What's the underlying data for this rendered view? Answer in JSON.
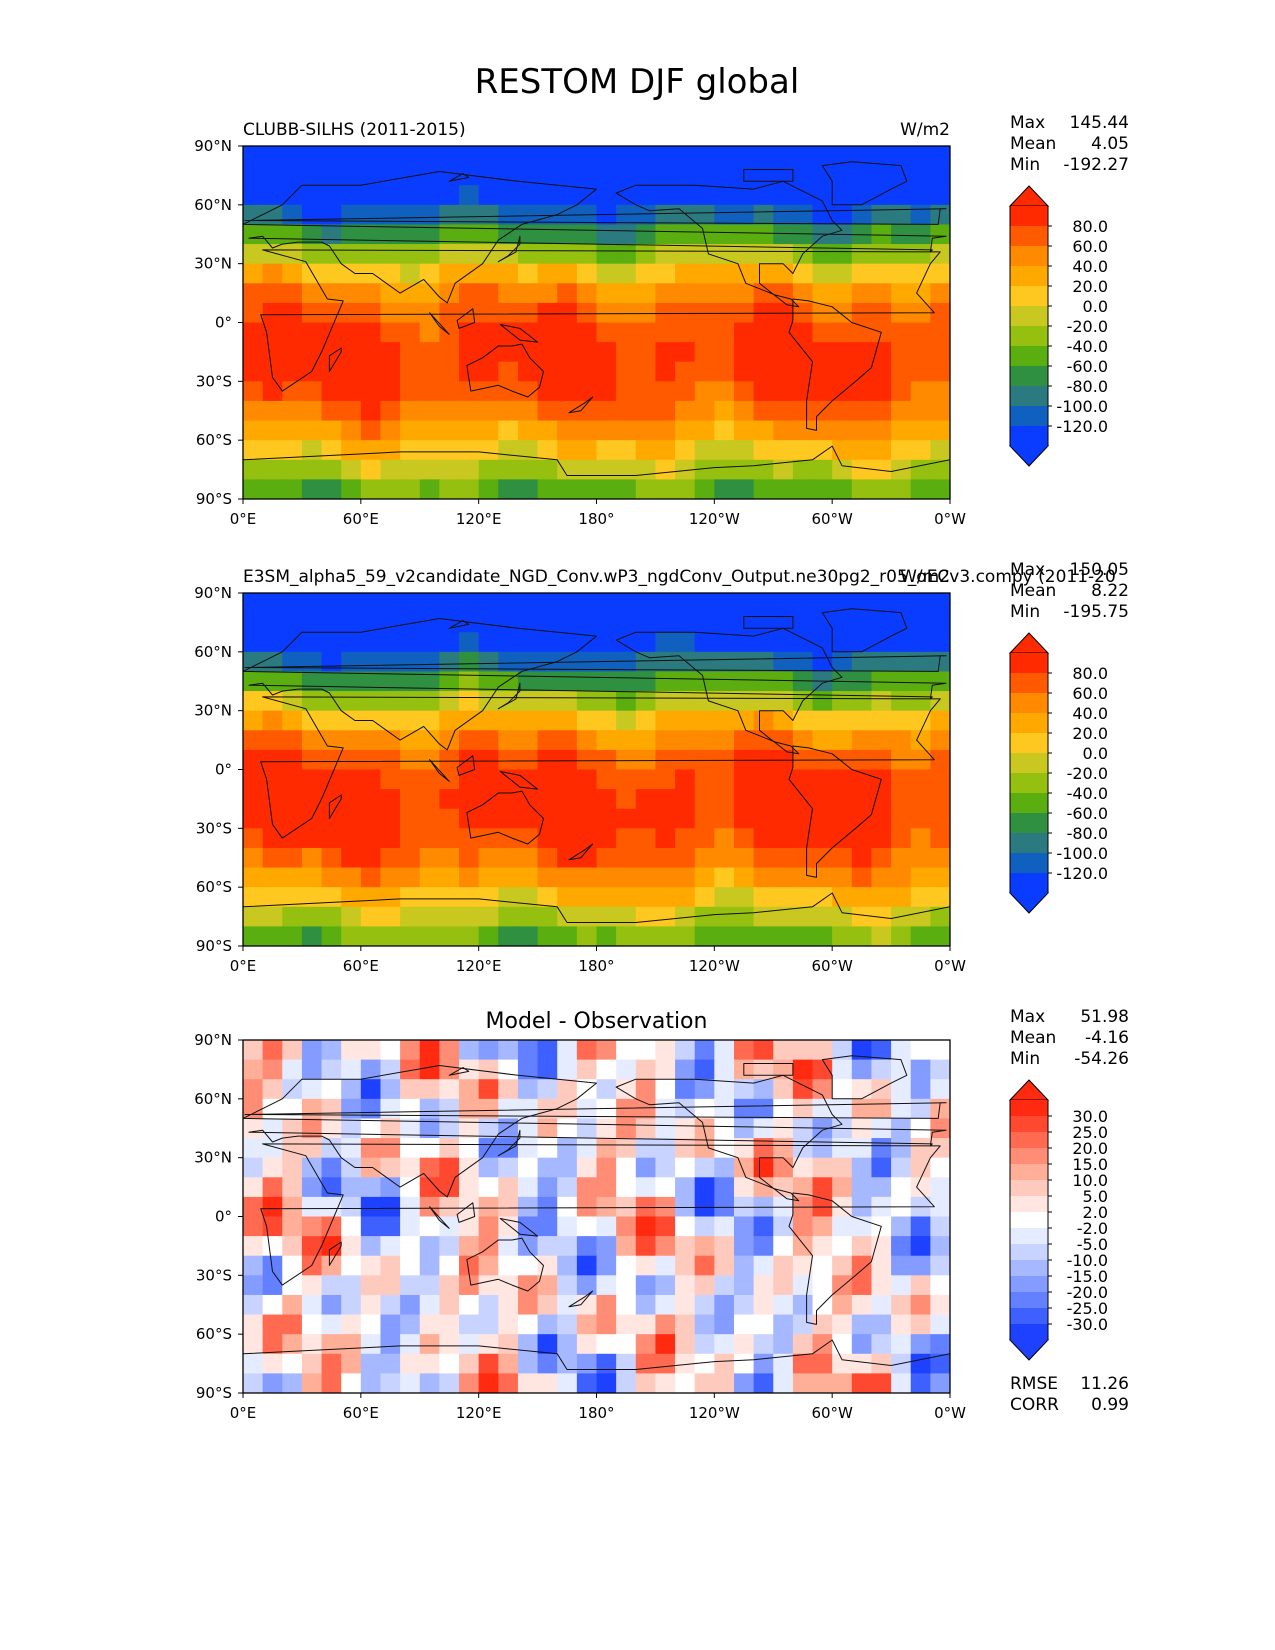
{
  "figure": {
    "title": "RESTOM DJF global"
  },
  "axes": {
    "lat_ticks": [
      "90°N",
      "60°N",
      "30°N",
      "0°",
      "30°S",
      "60°S",
      "90°S"
    ],
    "lon_ticks": [
      "0°E",
      "60°E",
      "120°E",
      "180°",
      "120°W",
      "60°W",
      "0°W"
    ]
  },
  "chart_data": [
    {
      "type": "heatmap",
      "name": "test",
      "left_title": "CLUBB-SILHS (2011-2015)",
      "center_title": "",
      "units": "W/m2",
      "stats": {
        "labels": [
          "Max",
          "Mean",
          "Min"
        ],
        "values": [
          "145.44",
          "4.05",
          "-192.27"
        ]
      },
      "colorbar": {
        "ticks": [
          "80.0",
          "60.0",
          "40.0",
          "20.0",
          "0.0",
          "-20.0",
          "-40.0",
          "-60.0",
          "-80.0",
          "-100.0",
          "-120.0"
        ],
        "colors": [
          "#ff2a00",
          "#ff5a00",
          "#ff8a00",
          "#ffa800",
          "#ffc820",
          "#c8c820",
          "#96c010",
          "#5aae10",
          "#2e9040",
          "#2b7a80",
          "#1060c0",
          "#0a3cff"
        ]
      },
      "x_range": [
        0,
        360
      ],
      "y_range": [
        -90,
        90
      ]
    },
    {
      "type": "heatmap",
      "name": "reference",
      "left_title": "E3SM_alpha5_59_v2candidate_NGD_Conv.wP3_ngdConv_Output.ne30pg2_r05_oECv3.compy (2011-20",
      "center_title": "",
      "units": "W/m2",
      "stats": {
        "labels": [
          "Max",
          "Mean",
          "Min"
        ],
        "values": [
          "150.05",
          "8.22",
          "-195.75"
        ]
      },
      "colorbar": {
        "ticks": [
          "80.0",
          "60.0",
          "40.0",
          "20.0",
          "0.0",
          "-20.0",
          "-40.0",
          "-60.0",
          "-80.0",
          "-100.0",
          "-120.0"
        ],
        "colors": [
          "#ff2a00",
          "#ff5a00",
          "#ff8a00",
          "#ffa800",
          "#ffc820",
          "#c8c820",
          "#96c010",
          "#5aae10",
          "#2e9040",
          "#2b7a80",
          "#1060c0",
          "#0a3cff"
        ]
      },
      "x_range": [
        0,
        360
      ],
      "y_range": [
        -90,
        90
      ]
    },
    {
      "type": "heatmap",
      "name": "difference",
      "left_title": "",
      "center_title": "Model - Observation",
      "units": "",
      "stats": {
        "labels": [
          "Max",
          "Mean",
          "Min"
        ],
        "values": [
          "51.98",
          "-4.16",
          "-54.26"
        ]
      },
      "metrics": {
        "labels": [
          "RMSE",
          "CORR"
        ],
        "values": [
          "11.26",
          "0.99"
        ]
      },
      "colorbar": {
        "ticks": [
          "30.0",
          "25.0",
          "20.0",
          "15.0",
          "10.0",
          "5.0",
          "2.0",
          "-2.0",
          "-5.0",
          "-10.0",
          "-15.0",
          "-20.0",
          "-25.0",
          "-30.0"
        ],
        "colors": [
          "#ff2a10",
          "#ff4830",
          "#ff6a50",
          "#ff8c74",
          "#ffae98",
          "#ffcabe",
          "#ffe6e0",
          "#ffffff",
          "#e6ecff",
          "#c8d4ff",
          "#a6b8ff",
          "#849cff",
          "#6280ff",
          "#3e60ff",
          "#1e40ff"
        ]
      },
      "x_range": [
        0,
        360
      ],
      "y_range": [
        -90,
        90
      ]
    }
  ]
}
